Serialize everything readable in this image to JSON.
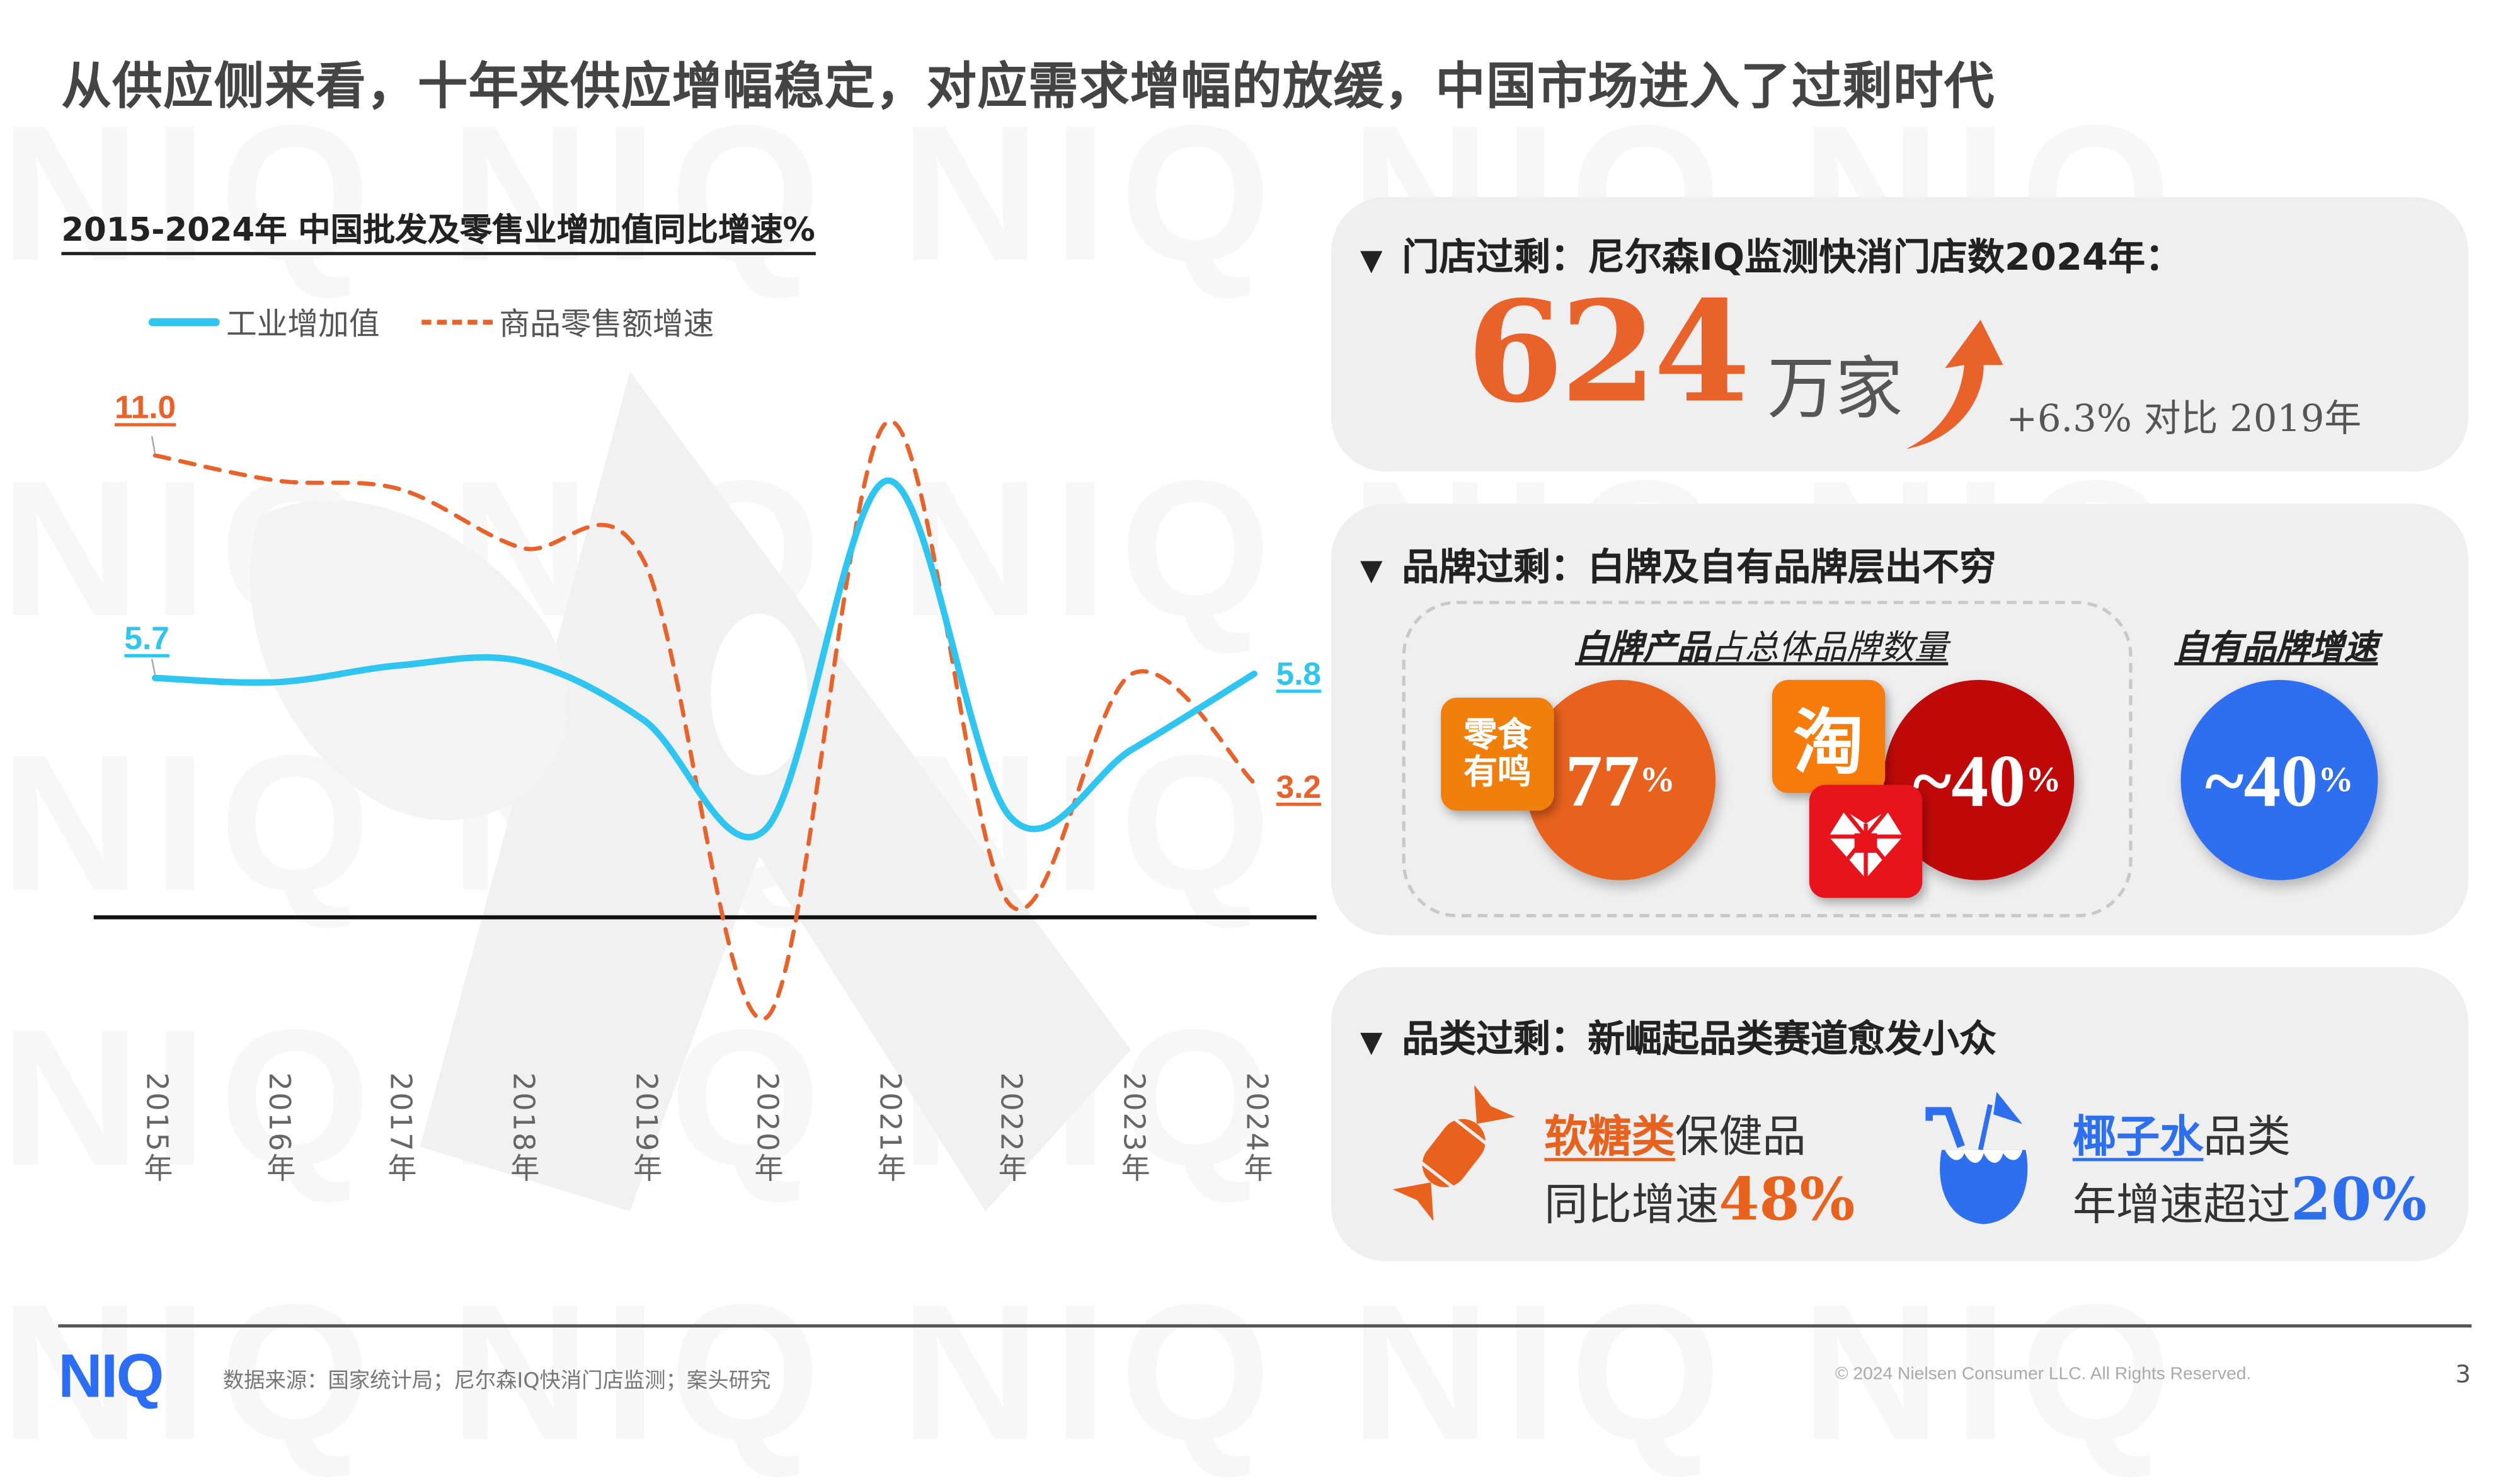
{
  "page": {
    "title": "从供应侧来看，十年来供应增幅稳定，对应需求增幅的放缓，中国市场进入了过剩时代",
    "watermark_text": "NIQ NIQ NIQ NIQ NIQ"
  },
  "chart_data": {
    "type": "line",
    "title": "2015-2024年 中国批发及零售业增加值同比增速%",
    "xlabel": "",
    "ylabel": "",
    "categories": [
      "2015年",
      "2016年",
      "2017年",
      "2018年",
      "2019年",
      "2020年",
      "2021年",
      "2022年",
      "2023年",
      "2024年"
    ],
    "series": [
      {
        "name": "工业增加值",
        "style": "solid",
        "color": "#2ec5f0",
        "values": [
          5.7,
          5.6,
          6.0,
          6.1,
          4.7,
          2.1,
          10.4,
          2.4,
          4.0,
          5.8
        ]
      },
      {
        "name": "商品零售额增速",
        "style": "dashed",
        "color": "#e8622a",
        "values": [
          11.0,
          10.4,
          10.2,
          8.8,
          8.5,
          -2.4,
          11.8,
          0.3,
          5.8,
          3.2
        ]
      }
    ],
    "data_labels": [
      {
        "series": "工业增加值",
        "x": "2015年",
        "text": "5.7"
      },
      {
        "series": "工业增加值",
        "x": "2024年",
        "text": "5.8"
      },
      {
        "series": "商品零售额增速",
        "x": "2015年",
        "text": "11.0"
      },
      {
        "series": "商品零售额增速",
        "x": "2024年",
        "text": "3.2"
      }
    ],
    "ylim": [
      -4,
      13
    ],
    "grid": false,
    "zero_line": true,
    "legend_position": "top-left"
  },
  "panels": {
    "store": {
      "heading": "门店过剩：尼尔森IQ监测快消门店数2024年：",
      "triangle": "▼",
      "big_number": "624",
      "unit": "万家",
      "arrow_icon": "up-arrow-icon",
      "comparison": "+6.3% 对比 2019年"
    },
    "brand": {
      "heading": "品牌过剩：白牌及自有品牌层出不穷",
      "triangle": "▼",
      "white_label_title_bold": "白牌产品",
      "white_label_title_rest": "占总体品牌数量",
      "private_label_title": "自有品牌增速",
      "items": [
        {
          "app": "零食有鸣",
          "app_line1": "零食",
          "app_line2": "有鸣",
          "value": "77",
          "suffix": "%",
          "color": "#e8621e",
          "app_color": "#f07f0c"
        },
        {
          "app": "淘",
          "app2": "拼",
          "value": "~40",
          "suffix": "%",
          "color": "#c00a0a",
          "app_color": "#f77b0a",
          "app2_color": "#e8141b"
        },
        {
          "value": "~40",
          "suffix": "%",
          "color": "#2e6ff0"
        }
      ]
    },
    "category": {
      "heading": "品类过剩：新崛起品类赛道愈发小众",
      "triangle": "▼",
      "items": [
        {
          "icon": "candy-icon",
          "highlight": "软糖类",
          "line1_rest": "保健品",
          "line2_prefix": "同比增速",
          "value": "48%",
          "color": "#e8621e"
        },
        {
          "icon": "coconut-drink-icon",
          "highlight": "椰子水",
          "line1_rest": "品类",
          "line2_prefix": "年增速超过",
          "value": "20%",
          "color": "#2e6ff0"
        }
      ]
    }
  },
  "footer": {
    "logo": "NIQ",
    "source": "数据来源：国家统计局；尼尔森IQ快消门店监测；案头研究",
    "copyright": "© 2024 Nielsen Consumer LLC. All Rights Reserved.",
    "page_number": "3"
  },
  "colors": {
    "accent_orange": "#e8622a",
    "accent_blue": "#2ec5f0",
    "brand_blue": "#2b6ef5",
    "deep_red": "#c00a0a",
    "panel_bg": "#efefef"
  }
}
